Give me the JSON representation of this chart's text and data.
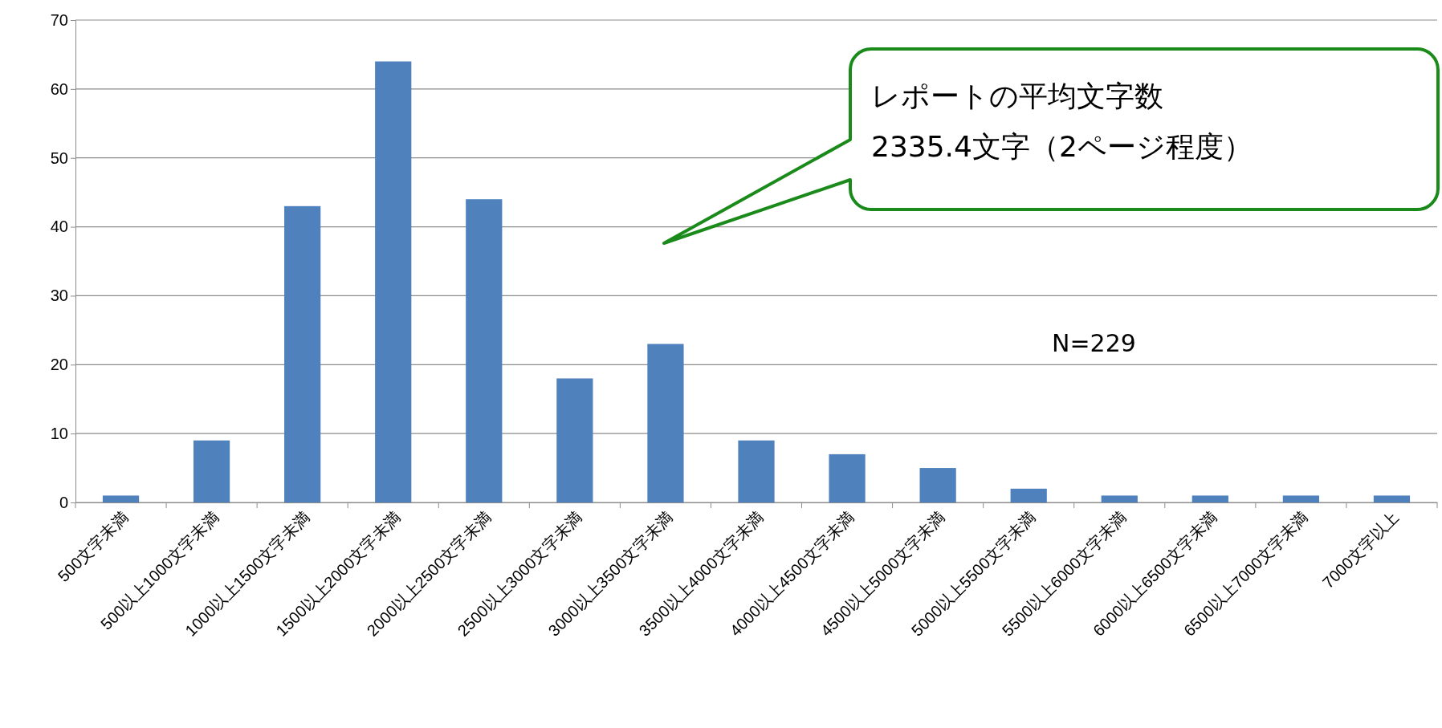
{
  "chart_data": {
    "type": "bar",
    "categories": [
      "500文字未満",
      "500以上1000文字未満",
      "1000以上1500文字未満",
      "1500以上2000文字未満",
      "2000以上2500文字未満",
      "2500以上3000文字未満",
      "3000以上3500文字未満",
      "3500以上4000文字未満",
      "4000以上4500文字未満",
      "4500以上5000文字未満",
      "5000以上5500文字未満",
      "5500以上6000文字未満",
      "6000以上6500文字未満",
      "6500以上7000文字未満",
      "7000文字以上"
    ],
    "values": [
      1,
      9,
      43,
      64,
      44,
      18,
      23,
      9,
      7,
      5,
      2,
      1,
      1,
      1,
      1
    ],
    "color": "#4f81bd",
    "ylim": [
      0,
      70
    ],
    "yticks": [
      0,
      10,
      20,
      30,
      40,
      50,
      60,
      70
    ],
    "grid": "y",
    "annotations": [
      "レポートの平均文字数",
      "2335.4文字（2ページ程度）",
      "N=229"
    ]
  }
}
